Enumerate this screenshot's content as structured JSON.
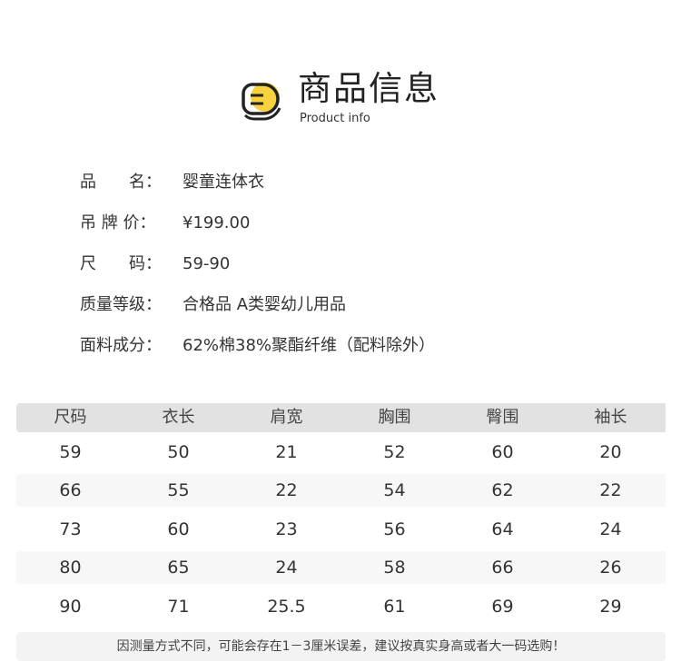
{
  "header": {
    "title": "商品信息",
    "subtitle": "Product info",
    "icon": "list-badge-icon",
    "accent": "#f7d23e"
  },
  "info": [
    {
      "label": "品　　名：",
      "value": "婴童连体衣"
    },
    {
      "label": "吊 牌 价：",
      "value": "¥199.00"
    },
    {
      "label": "尺　　码：",
      "value": "59-90"
    },
    {
      "label": "质量等级：",
      "value": "合格品 A类婴幼儿用品"
    },
    {
      "label": "面料成分：",
      "value": "62%棉38%聚酯纤维（配料除外）"
    }
  ],
  "table": {
    "headers": [
      "尺码",
      "衣长",
      "肩宽",
      "胸围",
      "臀围",
      "袖长"
    ],
    "rows": [
      [
        "59",
        "50",
        "21",
        "52",
        "60",
        "20"
      ],
      [
        "66",
        "55",
        "22",
        "54",
        "62",
        "22"
      ],
      [
        "73",
        "60",
        "23",
        "56",
        "64",
        "24"
      ],
      [
        "80",
        "65",
        "24",
        "58",
        "66",
        "26"
      ],
      [
        "90",
        "71",
        "25.5",
        "61",
        "69",
        "29"
      ]
    ]
  },
  "note": "因测量方式不同，可能会存在1－3厘米误差，建议按真实身高或者大一码选购！"
}
